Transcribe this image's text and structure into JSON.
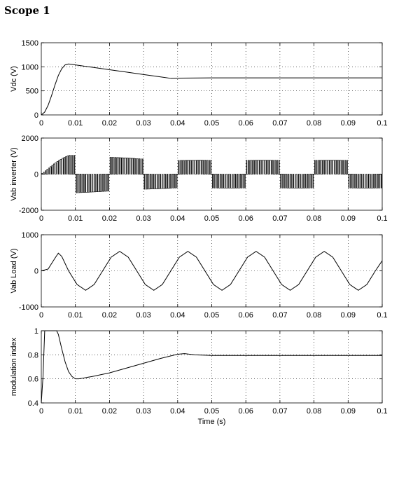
{
  "page": {
    "title": "Scope 1"
  },
  "chart_data": [
    {
      "type": "line",
      "ylabel": "Vdc  (V)",
      "xlabel": "",
      "xlim": [
        0,
        0.1
      ],
      "ylim": [
        0,
        1500
      ],
      "grid": true,
      "xticks": [
        0,
        0.01,
        0.02,
        0.03,
        0.04,
        0.05,
        0.06,
        0.07,
        0.08,
        0.09,
        0.1
      ],
      "xticklabels": [
        "0",
        "0.01",
        "0.02",
        "0.03",
        "0.04",
        "0.05",
        "0.06",
        "0.07",
        "0.08",
        "0.09",
        "0.1"
      ],
      "yticks": [
        0,
        500,
        1000,
        1500
      ],
      "yticklabels": [
        "0",
        "500",
        "1000",
        "1500"
      ],
      "series": [
        {
          "x": [
            0,
            0.001,
            0.002,
            0.003,
            0.004,
            0.005,
            0.006,
            0.007,
            0.008,
            0.009,
            0.01,
            0.015,
            0.02,
            0.025,
            0.03,
            0.035,
            0.038,
            0.04,
            0.05,
            0.06,
            0.07,
            0.08,
            0.09,
            0.1
          ],
          "y": [
            0,
            60,
            200,
            400,
            620,
            820,
            960,
            1040,
            1060,
            1050,
            1040,
            990,
            940,
            890,
            840,
            790,
            760,
            765,
            770,
            770,
            770,
            770,
            770,
            770
          ]
        }
      ]
    },
    {
      "type": "line",
      "ylabel": "Vab inverter (V)",
      "xlabel": "",
      "xlim": [
        0,
        0.1
      ],
      "ylim": [
        -2000,
        2000
      ],
      "grid": true,
      "xticks": [
        0,
        0.01,
        0.02,
        0.03,
        0.04,
        0.05,
        0.06,
        0.07,
        0.08,
        0.09,
        0.1
      ],
      "xticklabels": [
        "0",
        "0.01",
        "0.02",
        "0.03",
        "0.04",
        "0.05",
        "0.06",
        "0.07",
        "0.08",
        "0.09",
        "0.1"
      ],
      "yticks": [
        -2000,
        0,
        2000
      ],
      "yticklabels": [
        "-2000",
        "0",
        "2000"
      ],
      "pulses": {
        "fundamental_hz": 50,
        "switching_hz": 2000,
        "envelope_x": [
          0,
          0.002,
          0.004,
          0.006,
          0.008,
          0.01,
          0.015,
          0.02,
          0.03,
          0.04,
          0.05,
          0.1
        ],
        "envelope_y": [
          0,
          300,
          600,
          850,
          1040,
          1040,
          990,
          940,
          840,
          760,
          770,
          770
        ]
      }
    },
    {
      "type": "line",
      "ylabel": "Vab Load (V)",
      "xlabel": "",
      "xlim": [
        0,
        0.1
      ],
      "ylim": [
        -1000,
        1000
      ],
      "grid": true,
      "xticks": [
        0,
        0.01,
        0.02,
        0.03,
        0.04,
        0.05,
        0.06,
        0.07,
        0.08,
        0.09,
        0.1
      ],
      "xticklabels": [
        "0",
        "0.01",
        "0.02",
        "0.03",
        "0.04",
        "0.05",
        "0.06",
        "0.07",
        "0.08",
        "0.09",
        "0.1"
      ],
      "yticks": [
        -1000,
        0,
        1000
      ],
      "yticklabels": [
        "-1000",
        "0",
        "1000"
      ],
      "series": [
        {
          "x": [
            0,
            0.002,
            0.004,
            0.005,
            0.006,
            0.008,
            0.0105,
            0.013,
            0.0155,
            0.018,
            0.0205,
            0.023,
            0.0255,
            0.028,
            0.0305,
            0.033,
            0.0355,
            0.038,
            0.0405,
            0.043,
            0.0455,
            0.048,
            0.0505,
            0.053,
            0.0555,
            0.058,
            0.0605,
            0.063,
            0.0655,
            0.068,
            0.0705,
            0.073,
            0.0755,
            0.078,
            0.0805,
            0.083,
            0.0855,
            0.088,
            0.0905,
            0.093,
            0.0955,
            0.098,
            0.1
          ],
          "y": [
            0,
            50,
            350,
            490,
            400,
            0,
            -380,
            -540,
            -380,
            0,
            380,
            540,
            380,
            0,
            -380,
            -540,
            -380,
            0,
            380,
            540,
            380,
            0,
            -380,
            -540,
            -380,
            0,
            380,
            540,
            380,
            0,
            -380,
            -540,
            -380,
            0,
            380,
            540,
            380,
            0,
            -380,
            -540,
            -380,
            0,
            280
          ]
        }
      ]
    },
    {
      "type": "line",
      "ylabel": "modulation index",
      "xlabel": "Time (s)",
      "xlim": [
        0,
        0.1
      ],
      "ylim": [
        0.4,
        1
      ],
      "grid": true,
      "xticks": [
        0,
        0.01,
        0.02,
        0.03,
        0.04,
        0.05,
        0.06,
        0.07,
        0.08,
        0.09,
        0.1
      ],
      "xticklabels": [
        "0",
        "0.01",
        "0.02",
        "0.03",
        "0.04",
        "0.05",
        "0.06",
        "0.07",
        "0.08",
        "0.09",
        "0.1"
      ],
      "yticks": [
        0.4,
        0.6,
        0.8,
        1
      ],
      "yticklabels": [
        "0.4",
        "0.6",
        "0.8",
        "1"
      ],
      "series": [
        {
          "x": [
            0,
            0.0005,
            0.001,
            0.0045,
            0.005,
            0.006,
            0.007,
            0.008,
            0.009,
            0.01,
            0.011,
            0.012,
            0.015,
            0.02,
            0.025,
            0.03,
            0.035,
            0.04,
            0.042,
            0.045,
            0.05,
            0.06,
            0.07,
            0.08,
            0.09,
            0.1
          ],
          "y": [
            0.4,
            0.62,
            1,
            1,
            0.97,
            0.85,
            0.74,
            0.66,
            0.62,
            0.6,
            0.6,
            0.605,
            0.62,
            0.65,
            0.69,
            0.73,
            0.77,
            0.805,
            0.81,
            0.8,
            0.795,
            0.795,
            0.795,
            0.795,
            0.795,
            0.795
          ]
        }
      ]
    }
  ]
}
